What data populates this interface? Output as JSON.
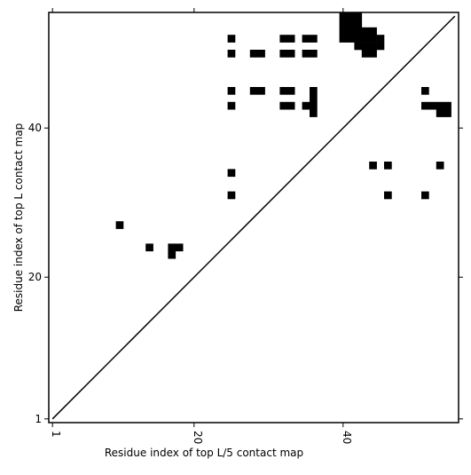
{
  "chart_data": {
    "type": "heatmap",
    "title": "",
    "xlabel": "Residue index of top L/5 contact map",
    "ylabel": "Residue index of top L contact map",
    "xlim": [
      0.5,
      55.5
    ],
    "ylim": [
      0.5,
      55.5
    ],
    "xticks": [
      1,
      20,
      40
    ],
    "yticks": [
      1,
      20,
      40
    ],
    "xtick_rotation": -90,
    "grid": false,
    "colors": {
      "contact": "#000000",
      "background": "#ffffff",
      "diagonal": "#000000"
    },
    "diagonal": [
      [
        1,
        1
      ],
      [
        55,
        55
      ]
    ],
    "lower_triangle_contacts": [
      [
        10,
        27
      ],
      [
        14,
        24
      ],
      [
        17,
        24
      ],
      [
        17,
        23
      ],
      [
        18,
        24
      ],
      [
        25,
        31
      ],
      [
        25,
        34
      ],
      [
        44,
        35
      ],
      [
        46,
        35
      ],
      [
        46,
        31
      ],
      [
        51,
        31
      ],
      [
        53,
        35
      ]
    ],
    "upper_triangle_contacts": [
      [
        25,
        52
      ],
      [
        25,
        50
      ],
      [
        25,
        45
      ],
      [
        25,
        43
      ],
      [
        28,
        50
      ],
      [
        29,
        50
      ],
      [
        28,
        45
      ],
      [
        29,
        45
      ],
      [
        32,
        52
      ],
      [
        33,
        52
      ],
      [
        32,
        50
      ],
      [
        33,
        50
      ],
      [
        32,
        45
      ],
      [
        33,
        45
      ],
      [
        32,
        43
      ],
      [
        33,
        43
      ],
      [
        35,
        52
      ],
      [
        36,
        52
      ],
      [
        35,
        50
      ],
      [
        36,
        50
      ],
      [
        36,
        45
      ],
      [
        36,
        44
      ],
      [
        35,
        43
      ],
      [
        36,
        43
      ],
      [
        36,
        42
      ],
      [
        40,
        52
      ],
      [
        40,
        53
      ],
      [
        40,
        54
      ],
      [
        40,
        55
      ],
      [
        41,
        52
      ],
      [
        41,
        53
      ],
      [
        41,
        54
      ],
      [
        41,
        55
      ],
      [
        42,
        51
      ],
      [
        42,
        52
      ],
      [
        42,
        53
      ],
      [
        42,
        54
      ],
      [
        42,
        55
      ],
      [
        43,
        50
      ],
      [
        43,
        51
      ],
      [
        43,
        52
      ],
      [
        43,
        53
      ],
      [
        44,
        50
      ],
      [
        44,
        51
      ],
      [
        44,
        52
      ],
      [
        44,
        53
      ],
      [
        45,
        51
      ],
      [
        45,
        52
      ],
      [
        51,
        45
      ],
      [
        51,
        43
      ],
      [
        52,
        43
      ],
      [
        53,
        43
      ],
      [
        53,
        42
      ],
      [
        54,
        43
      ],
      [
        54,
        42
      ]
    ]
  }
}
